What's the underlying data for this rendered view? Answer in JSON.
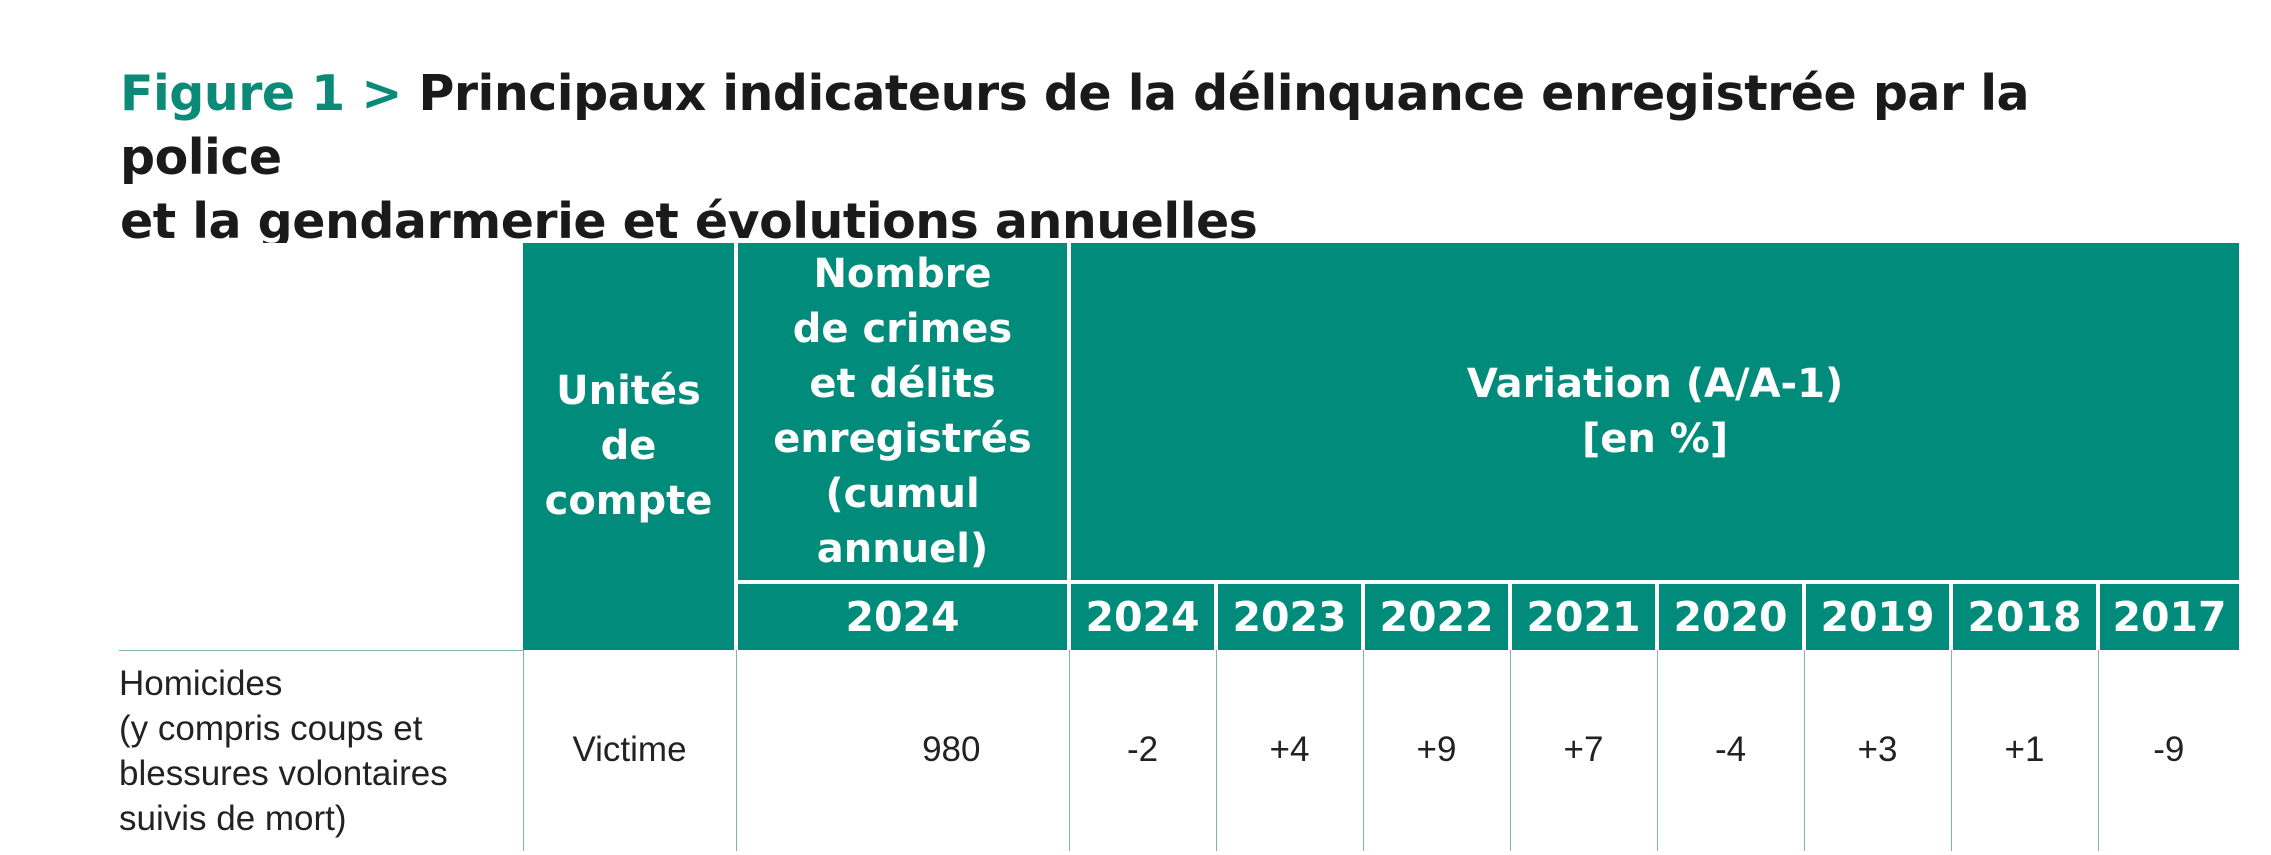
{
  "figure": {
    "prefix": "Figure 1 >",
    "title_line1": "Principaux indicateurs de la délinquance enregistrée par la police",
    "title_line2": "et la gendarmerie et évolutions annuelles"
  },
  "table": {
    "header_units": "Unités\nde\ncompte",
    "header_count": "Nombre\nde crimes\net délits\nenregistrés\n(cumul\nannuel)",
    "header_variation": "Variation (A/A-1)\n[en %]",
    "count_year": "2024",
    "variation_years": [
      "2024",
      "2023",
      "2022",
      "2021",
      "2020",
      "2019",
      "2018",
      "2017"
    ],
    "rows": [
      {
        "label": "Homicides\n(y compris coups et\nblessures volontaires\nsuivis de mort)",
        "unit": "Victime",
        "count": "980",
        "variations": [
          "-2",
          "+4",
          "+9",
          "+7",
          "-4",
          "+3",
          "+1",
          "-9"
        ]
      }
    ]
  }
}
